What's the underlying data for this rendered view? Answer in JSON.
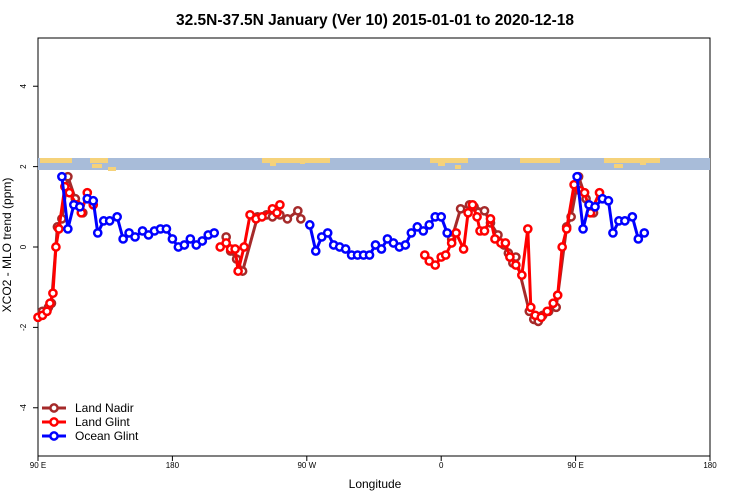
{
  "chart_data": {
    "type": "line",
    "title": "32.5N-37.5N January (Ver 10)   2015-01-01 to 2020-12-18",
    "xlabel": "Longitude",
    "ylabel": "XCO2 - MLO trend (ppm)",
    "xlim": [
      90,
      540
    ],
    "ylim": [
      -5.2,
      5.2
    ],
    "x_ticks": [
      {
        "value": 90,
        "label": "90 E"
      },
      {
        "value": 180,
        "label": "180"
      },
      {
        "value": 270,
        "label": "90 W"
      },
      {
        "value": 360,
        "label": "0"
      },
      {
        "value": 450,
        "label": "90 E"
      },
      {
        "value": 540,
        "label": "180"
      }
    ],
    "y_ticks": [
      -4,
      -2,
      0,
      2,
      4
    ],
    "grid": false,
    "legend_position": "bottom-left",
    "colors": {
      "land_nadir": "#a52a2a",
      "land_glint": "#ff0000",
      "ocean_glint": "#0000ff",
      "map_ocean": "#a8bcd9",
      "map_land": "#f5d27a"
    },
    "series": [
      {
        "name": "Land Nadir",
        "color": "#a52a2a",
        "points": [
          [
            93,
            -1.6
          ],
          [
            97,
            -1.5
          ],
          [
            99,
            -1.4
          ],
          [
            103,
            0.5
          ],
          [
            106,
            0.7
          ],
          [
            110,
            1.75
          ],
          [
            115,
            1.2
          ],
          [
            120,
            0.85
          ],
          [
            216,
            0.25
          ],
          [
            219,
            -0.1
          ],
          [
            223,
            -0.3
          ],
          [
            227,
            -0.6
          ],
          [
            237,
            0.75
          ],
          [
            243,
            0.8
          ],
          [
            247,
            0.75
          ],
          [
            252,
            0.8
          ],
          [
            257,
            0.7
          ],
          [
            264,
            0.9
          ],
          [
            266,
            0.7
          ],
          [
            367,
            0.2
          ],
          [
            373,
            0.95
          ],
          [
            379,
            1.05
          ],
          [
            382,
            1.0
          ],
          [
            389,
            0.9
          ],
          [
            393,
            0.6
          ],
          [
            398,
            0.3
          ],
          [
            402,
            0.05
          ],
          [
            405,
            -0.15
          ],
          [
            408,
            -0.4
          ],
          [
            410,
            -0.25
          ],
          [
            419,
            -1.6
          ],
          [
            422,
            -1.8
          ],
          [
            425,
            -1.85
          ],
          [
            428,
            -1.7
          ],
          [
            432,
            -1.6
          ],
          [
            437,
            -1.5
          ],
          [
            444,
            0.5
          ],
          [
            447,
            0.75
          ],
          [
            452,
            1.75
          ],
          [
            457,
            1.2
          ],
          [
            462,
            0.85
          ]
        ]
      },
      {
        "name": "Land Glint",
        "color": "#ff0000",
        "points": [
          [
            90,
            -1.75
          ],
          [
            93,
            -1.7
          ],
          [
            96,
            -1.6
          ],
          [
            98,
            -1.4
          ],
          [
            100,
            -1.15
          ],
          [
            102,
            0.0
          ],
          [
            104,
            0.45
          ],
          [
            108,
            1.5
          ],
          [
            111,
            1.35
          ],
          [
            116,
            1.05
          ],
          [
            119,
            0.85
          ],
          [
            123,
            1.35
          ],
          [
            127,
            1.05
          ],
          [
            212,
            0.0
          ],
          [
            216,
            0.1
          ],
          [
            219,
            -0.05
          ],
          [
            222,
            -0.05
          ],
          [
            224,
            -0.6
          ],
          [
            228,
            0.0
          ],
          [
            232,
            0.8
          ],
          [
            236,
            0.7
          ],
          [
            240,
            0.75
          ],
          [
            247,
            0.95
          ],
          [
            250,
            0.85
          ],
          [
            252,
            1.05
          ],
          [
            349,
            -0.2
          ],
          [
            352,
            -0.35
          ],
          [
            356,
            -0.45
          ],
          [
            360,
            -0.25
          ],
          [
            363,
            -0.2
          ],
          [
            367,
            0.1
          ],
          [
            370,
            0.35
          ],
          [
            375,
            -0.05
          ],
          [
            378,
            0.85
          ],
          [
            381,
            1.05
          ],
          [
            384,
            0.75
          ],
          [
            386,
            0.4
          ],
          [
            389,
            0.4
          ],
          [
            393,
            0.7
          ],
          [
            396,
            0.2
          ],
          [
            400,
            0.1
          ],
          [
            403,
            0.1
          ],
          [
            406,
            -0.25
          ],
          [
            410,
            -0.45
          ],
          [
            414,
            -0.7
          ],
          [
            418,
            0.45
          ],
          [
            420,
            -1.5
          ],
          [
            423,
            -1.7
          ],
          [
            427,
            -1.75
          ],
          [
            431,
            -1.6
          ],
          [
            435,
            -1.4
          ],
          [
            438,
            -1.2
          ],
          [
            441,
            0.0
          ],
          [
            444,
            0.45
          ],
          [
            449,
            1.55
          ],
          [
            453,
            1.4
          ],
          [
            456,
            1.35
          ],
          [
            460,
            0.85
          ],
          [
            466,
            1.35
          ]
        ]
      },
      {
        "name": "Ocean Glint",
        "color": "#0000ff",
        "points": [
          [
            123,
            1.2
          ],
          [
            127,
            1.15
          ],
          [
            130,
            0.35
          ],
          [
            134,
            0.65
          ],
          [
            138,
            0.65
          ],
          [
            143,
            0.75
          ],
          [
            147,
            0.2
          ],
          [
            151,
            0.35
          ],
          [
            155,
            0.25
          ],
          [
            160,
            0.4
          ],
          [
            164,
            0.3
          ],
          [
            168,
            0.4
          ],
          [
            172,
            0.45
          ],
          [
            176,
            0.45
          ],
          [
            180,
            0.2
          ],
          [
            184,
            0.0
          ],
          [
            188,
            0.05
          ],
          [
            192,
            0.2
          ],
          [
            196,
            0.05
          ],
          [
            200,
            0.15
          ],
          [
            204,
            0.3
          ],
          [
            208,
            0.35
          ],
          [
            272,
            0.55
          ],
          [
            276,
            -0.1
          ],
          [
            280,
            0.25
          ],
          [
            284,
            0.35
          ],
          [
            288,
            0.05
          ],
          [
            292,
            0.0
          ],
          [
            296,
            -0.05
          ],
          [
            300,
            -0.2
          ],
          [
            304,
            -0.2
          ],
          [
            308,
            -0.2
          ],
          [
            312,
            -0.2
          ],
          [
            316,
            0.05
          ],
          [
            320,
            -0.05
          ],
          [
            324,
            0.2
          ],
          [
            328,
            0.1
          ],
          [
            332,
            0.0
          ],
          [
            336,
            0.05
          ],
          [
            340,
            0.35
          ],
          [
            344,
            0.5
          ],
          [
            348,
            0.4
          ],
          [
            352,
            0.55
          ],
          [
            356,
            0.75
          ],
          [
            360,
            0.75
          ],
          [
            364,
            0.35
          ],
          [
            106,
            1.75
          ],
          [
            110,
            0.45
          ],
          [
            114,
            1.05
          ],
          [
            118,
            1.0
          ],
          [
            451,
            1.75
          ],
          [
            455,
            0.45
          ],
          [
            459,
            1.05
          ],
          [
            463,
            1.0
          ],
          [
            468,
            1.2
          ],
          [
            472,
            1.15
          ],
          [
            475,
            0.35
          ],
          [
            479,
            0.65
          ],
          [
            483,
            0.65
          ],
          [
            488,
            0.75
          ],
          [
            492,
            0.2
          ],
          [
            496,
            0.35
          ]
        ]
      }
    ]
  }
}
